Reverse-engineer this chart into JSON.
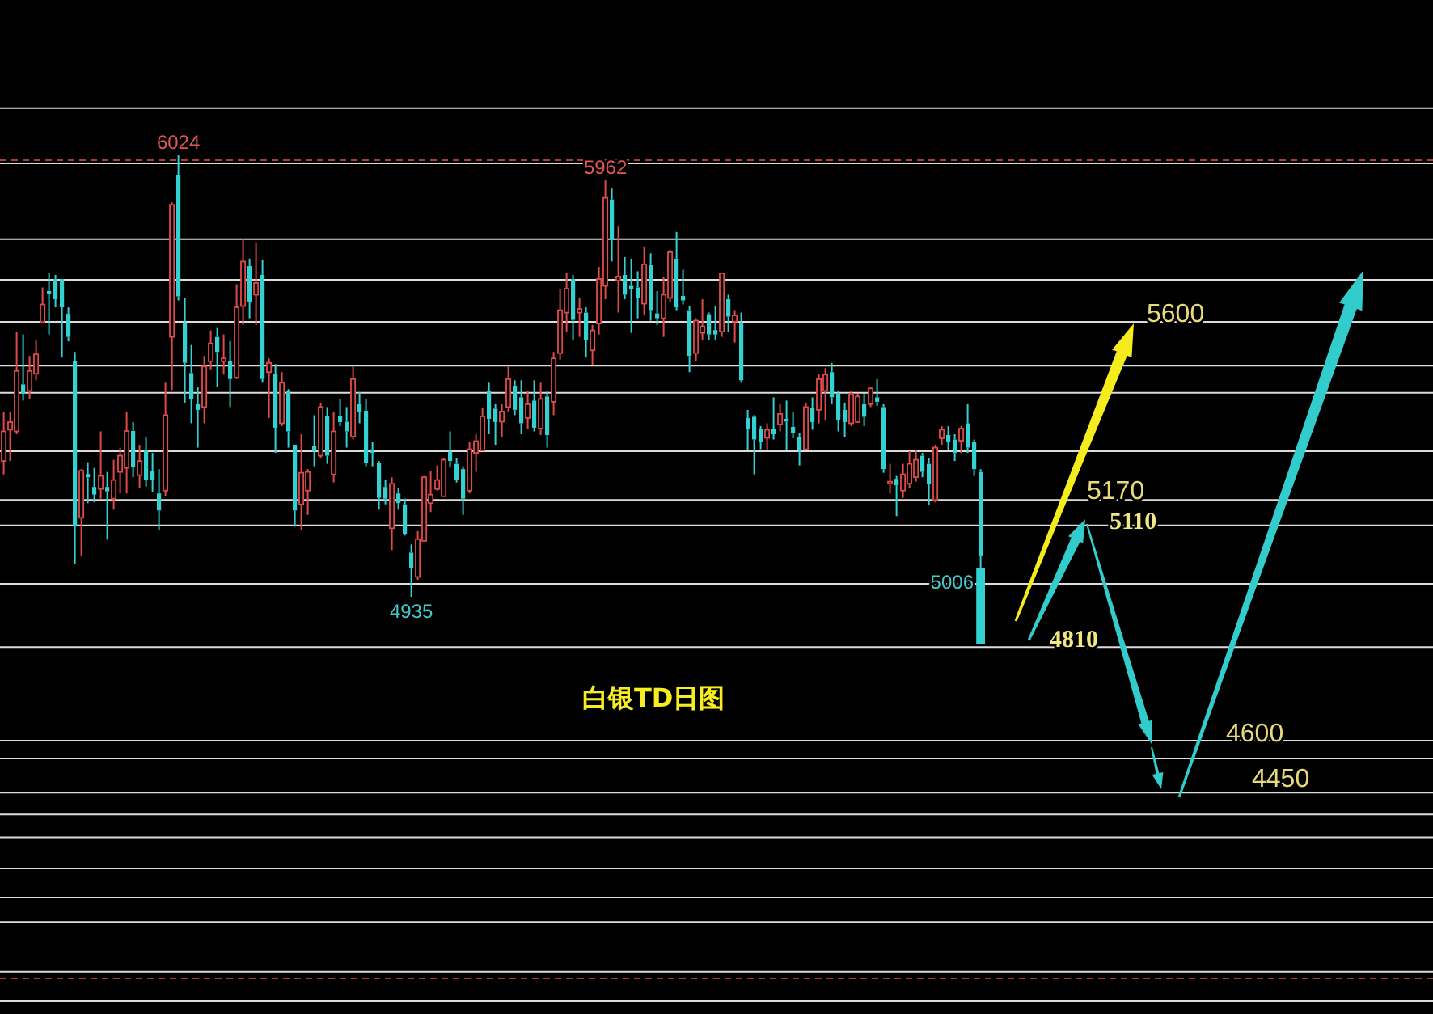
{
  "chart_data": {
    "type": "candlestick",
    "title": "白银TD日图",
    "categories": [
      null,
      null,
      null,
      null,
      null,
      null,
      null,
      null,
      null,
      null,
      null,
      null,
      null,
      null,
      null,
      null,
      null,
      null,
      null,
      null,
      null,
      null,
      null,
      null,
      null,
      null,
      null,
      null,
      null,
      null,
      null,
      null,
      null,
      null,
      null,
      null,
      null,
      null,
      null,
      null,
      null,
      null,
      null,
      null,
      null,
      null,
      null,
      null,
      null,
      null,
      null,
      null,
      null,
      null,
      null,
      null,
      null,
      null,
      null,
      null,
      null,
      null,
      null,
      null,
      null,
      null,
      null,
      null,
      null,
      null,
      null,
      null,
      null,
      null,
      null,
      null,
      null,
      null,
      null,
      null,
      null,
      null,
      null,
      null,
      null,
      null,
      null,
      null,
      null,
      null,
      null,
      null,
      null,
      null,
      null,
      null,
      null,
      null,
      null,
      null,
      null,
      null,
      null,
      null,
      null,
      null,
      null,
      null,
      null,
      null,
      null,
      null,
      null,
      null,
      null,
      null,
      null,
      null,
      null,
      null,
      null,
      null,
      null,
      null,
      null,
      null,
      null,
      null,
      null,
      null,
      null,
      null,
      null,
      null,
      null,
      null,
      null,
      null,
      null,
      null,
      null,
      null,
      null,
      null,
      null,
      null,
      null,
      null,
      null,
      null,
      null,
      null
    ],
    "ohlc": [
      [
        5270,
        5390,
        5237,
        5343
      ],
      [
        5347,
        5390,
        5270,
        5366
      ],
      [
        5343,
        5589,
        5336,
        5492
      ],
      [
        5459,
        5582,
        5419,
        5436
      ],
      [
        5443,
        5529,
        5423,
        5492
      ],
      [
        5485,
        5569,
        5469,
        5533
      ],
      [
        5613,
        5698,
        5609,
        5656
      ],
      [
        5689,
        5735,
        5582,
        5682
      ],
      [
        5719,
        5729,
        5649,
        5669
      ],
      [
        5719,
        5719,
        5525,
        5649
      ],
      [
        5633,
        5649,
        5565,
        5576
      ],
      [
        5516,
        5539,
        5015,
        5110
      ],
      [
        5130,
        5250,
        5037,
        5246
      ],
      [
        5238,
        5267,
        5166,
        5230
      ],
      [
        5206,
        5253,
        5168,
        5187
      ],
      [
        5201,
        5343,
        5177,
        5233
      ],
      [
        5206,
        5243,
        5076,
        5195
      ],
      [
        5177,
        5273,
        5150,
        5223
      ],
      [
        5243,
        5303,
        5190,
        5283
      ],
      [
        5253,
        5390,
        5190,
        5344
      ],
      [
        5344,
        5366,
        5230,
        5254
      ],
      [
        5235,
        5310,
        5203,
        5270
      ],
      [
        5296,
        5330,
        5207,
        5223
      ],
      [
        5246,
        5290,
        5193,
        5223
      ],
      [
        5190,
        5250,
        5100,
        5148
      ],
      [
        5197,
        5463,
        5183,
        5383
      ],
      [
        5576,
        5908,
        5445,
        5902
      ],
      [
        5975,
        6024,
        5666,
        5676
      ],
      [
        5612,
        5672,
        5414,
        5512
      ],
      [
        5487,
        5556,
        5363,
        5423
      ],
      [
        5410,
        5453,
        5303,
        5396
      ],
      [
        5403,
        5529,
        5363,
        5503
      ],
      [
        5516,
        5592,
        5496,
        5560
      ],
      [
        5576,
        5598,
        5453,
        5539
      ],
      [
        5516,
        5582,
        5483,
        5523
      ],
      [
        5516,
        5566,
        5403,
        5472
      ],
      [
        5476,
        5706,
        5472,
        5649
      ],
      [
        5652,
        5818,
        5605,
        5762
      ],
      [
        5751,
        5769,
        5622,
        5662
      ],
      [
        5680,
        5809,
        5605,
        5709
      ],
      [
        5729,
        5765,
        5463,
        5472
      ],
      [
        5489,
        5523,
        5376,
        5512
      ],
      [
        5485,
        5509,
        5290,
        5352
      ],
      [
        5363,
        5489,
        5356,
        5463
      ],
      [
        5443,
        5447,
        5303,
        5343
      ],
      [
        5310,
        5310,
        5108,
        5148
      ],
      [
        5163,
        5336,
        5100,
        5241
      ],
      [
        5197,
        5250,
        5137,
        5243
      ],
      [
        5307,
        5383,
        5257,
        5294
      ],
      [
        5283,
        5414,
        5277,
        5403
      ],
      [
        5380,
        5403,
        5263,
        5283
      ],
      [
        5237,
        5392,
        5217,
        5343
      ],
      [
        5380,
        5423,
        5356,
        5366
      ],
      [
        5367,
        5403,
        5303,
        5343
      ],
      [
        5330,
        5503,
        5323,
        5472
      ],
      [
        5410,
        5440,
        5363,
        5390
      ],
      [
        5394,
        5423,
        5257,
        5266
      ],
      [
        5299,
        5316,
        5257,
        5290
      ],
      [
        5266,
        5270,
        5150,
        5179
      ],
      [
        5206,
        5223,
        5163,
        5177
      ],
      [
        5104,
        5230,
        5050,
        5214
      ],
      [
        5190,
        5203,
        5150,
        5166
      ],
      [
        5163,
        5177,
        5086,
        5090
      ],
      [
        5044,
        5064,
        4935,
        5007
      ],
      [
        4984,
        5097,
        4977,
        5077
      ],
      [
        5073,
        5233,
        5073,
        5230
      ],
      [
        5166,
        5246,
        5144,
        5187
      ],
      [
        5201,
        5259,
        5197,
        5223
      ],
      [
        5183,
        5277,
        5183,
        5273
      ],
      [
        5293,
        5343,
        5254,
        5270
      ],
      [
        5263,
        5277,
        5217,
        5223
      ],
      [
        5250,
        5257,
        5137,
        5177
      ],
      [
        5197,
        5316,
        5190,
        5299
      ],
      [
        5290,
        5336,
        5243,
        5319
      ],
      [
        5296,
        5400,
        5296,
        5380
      ],
      [
        5443,
        5463,
        5336,
        5374
      ],
      [
        5399,
        5410,
        5310,
        5366
      ],
      [
        5367,
        5410,
        5330,
        5392
      ],
      [
        5403,
        5503,
        5390,
        5472
      ],
      [
        5456,
        5469,
        5383,
        5396
      ],
      [
        5427,
        5469,
        5336,
        5363
      ],
      [
        5376,
        5443,
        5350,
        5410
      ],
      [
        5419,
        5469,
        5343,
        5352
      ],
      [
        5350,
        5463,
        5334,
        5423
      ],
      [
        5429,
        5443,
        5303,
        5334
      ],
      [
        5416,
        5539,
        5383,
        5523
      ],
      [
        5536,
        5695,
        5520,
        5642
      ],
      [
        5636,
        5735,
        5589,
        5695
      ],
      [
        5719,
        5729,
        5569,
        5618
      ],
      [
        5636,
        5672,
        5576,
        5645
      ],
      [
        5636,
        5649,
        5525,
        5569
      ],
      [
        5543,
        5605,
        5507,
        5592
      ],
      [
        5609,
        5749,
        5582,
        5719
      ],
      [
        5702,
        5962,
        5669,
        5919
      ],
      [
        5915,
        5942,
        5762,
        5815
      ],
      [
        5715,
        5848,
        5636,
        5725
      ],
      [
        5729,
        5773,
        5669,
        5680
      ],
      [
        5702,
        5769,
        5586,
        5695
      ],
      [
        5698,
        5738,
        5622,
        5672
      ],
      [
        5658,
        5799,
        5629,
        5755
      ],
      [
        5753,
        5782,
        5616,
        5642
      ],
      [
        5634,
        5689,
        5605,
        5622
      ],
      [
        5622,
        5725,
        5576,
        5680
      ],
      [
        5672,
        5791,
        5662,
        5785
      ],
      [
        5769,
        5835,
        5642,
        5649
      ],
      [
        5677,
        5742,
        5656,
        5666
      ],
      [
        5642,
        5653,
        5489,
        5529
      ],
      [
        5536,
        5622,
        5516,
        5616
      ],
      [
        5586,
        5669,
        5569,
        5602
      ],
      [
        5632,
        5636,
        5569,
        5582
      ],
      [
        5593,
        5652,
        5569,
        5582
      ],
      [
        5589,
        5733,
        5576,
        5733
      ],
      [
        5669,
        5680,
        5589,
        5626
      ],
      [
        5614,
        5642,
        5562,
        5629
      ],
      [
        5609,
        5636,
        5463,
        5469
      ],
      [
        5376,
        5396,
        5296,
        5350
      ],
      [
        5379,
        5383,
        5237,
        5323
      ],
      [
        5350,
        5356,
        5299,
        5316
      ],
      [
        5327,
        5363,
        5296,
        5347
      ],
      [
        5350,
        5427,
        5323,
        5336
      ],
      [
        5360,
        5410,
        5343,
        5386
      ],
      [
        5374,
        5419,
        5296,
        5367
      ],
      [
        5354,
        5390,
        5326,
        5339
      ],
      [
        5330,
        5339,
        5259,
        5296
      ],
      [
        5299,
        5414,
        5299,
        5403
      ],
      [
        5400,
        5427,
        5347,
        5366
      ],
      [
        5396,
        5485,
        5363,
        5472
      ],
      [
        5443,
        5499,
        5370,
        5483
      ],
      [
        5489,
        5512,
        5410,
        5427
      ],
      [
        5436,
        5443,
        5343,
        5370
      ],
      [
        5396,
        5414,
        5330,
        5366
      ],
      [
        5363,
        5443,
        5356,
        5436
      ],
      [
        5366,
        5436,
        5366,
        5429
      ],
      [
        5410,
        5436,
        5356,
        5379
      ],
      [
        5410,
        5453,
        5403,
        5449
      ],
      [
        5427,
        5472,
        5406,
        5416
      ],
      [
        5403,
        5410,
        5241,
        5250
      ],
      [
        5214,
        5263,
        5190,
        5219
      ],
      [
        5226,
        5233,
        5134,
        5210
      ],
      [
        5197,
        5263,
        5179,
        5237
      ],
      [
        5214,
        5294,
        5203,
        5263
      ],
      [
        5230,
        5296,
        5219,
        5273
      ],
      [
        5283,
        5290,
        5230,
        5243
      ],
      [
        5263,
        5277,
        5161,
        5214
      ],
      [
        5174,
        5310,
        5168,
        5303
      ],
      [
        5326,
        5356,
        5310,
        5347
      ],
      [
        5334,
        5356,
        5296,
        5316
      ],
      [
        5323,
        5336,
        5270,
        5290
      ],
      [
        5320,
        5356,
        5290,
        5350
      ],
      [
        5363,
        5410,
        5290,
        5303
      ],
      [
        5316,
        5323,
        5233,
        5250
      ],
      [
        5243,
        5250,
        5006,
        5037
      ]
    ],
    "ylim": [
      3906,
      6407
    ],
    "tick_labels": false,
    "ref_lines": [
      {
        "axis": "y",
        "value": 6140,
        "color": "#dcdcdc"
      },
      {
        "axis": "y",
        "value": 6012,
        "color": "#b03a3a",
        "line_style": "dashed"
      },
      {
        "axis": "y",
        "value": 6004,
        "color": "#dcdcdc"
      },
      {
        "axis": "y",
        "value": 5817,
        "color": "#dcdcdc"
      },
      {
        "axis": "y",
        "value": 5717,
        "color": "#dcdcdc"
      },
      {
        "axis": "y",
        "value": 5613,
        "color": "#dcdcdc"
      },
      {
        "axis": "y",
        "value": 5505,
        "color": "#dcdcdc"
      },
      {
        "axis": "y",
        "value": 5438,
        "color": "#dcdcdc"
      },
      {
        "axis": "y",
        "value": 5294,
        "color": "#dcdcdc"
      },
      {
        "axis": "y",
        "value": 5174,
        "color": "#dcdcdc"
      },
      {
        "axis": "y",
        "value": 5111,
        "color": "#dcdcdc"
      },
      {
        "axis": "y",
        "value": 4967,
        "color": "#dcdcdc"
      },
      {
        "axis": "y",
        "value": 4811,
        "color": "#dcdcdc"
      },
      {
        "axis": "y",
        "value": 4580,
        "color": "#dcdcdc"
      },
      {
        "axis": "y",
        "value": 4536,
        "color": "#dcdcdc"
      },
      {
        "axis": "y",
        "value": 4452,
        "color": "#dcdcdc"
      },
      {
        "axis": "y",
        "value": 4398,
        "color": "#dcdcdc"
      },
      {
        "axis": "y",
        "value": 4342,
        "color": "#dcdcdc"
      },
      {
        "axis": "y",
        "value": 4265,
        "color": "#dcdcdc"
      },
      {
        "axis": "y",
        "value": 4193,
        "color": "#dcdcdc"
      },
      {
        "axis": "y",
        "value": 4133,
        "color": "#dcdcdc"
      },
      {
        "axis": "y",
        "value": 4010,
        "color": "#dcdcdc"
      },
      {
        "axis": "y",
        "value": 3994,
        "color": "#b03a3a",
        "line_style": "dashed"
      },
      {
        "axis": "y",
        "value": 3938,
        "color": "#dcdcdc"
      }
    ],
    "annotations": [
      {
        "text": "6024",
        "y": 6024
      },
      {
        "text": "5962",
        "y": 5962
      },
      {
        "text": "4935",
        "y": 4935
      },
      "5006",
      {
        "text": "5600",
        "y": 5600
      },
      {
        "text": "5170",
        "y": 5170
      },
      {
        "text": "5110",
        "y": 5110
      },
      {
        "text": "4810",
        "y": 4810
      },
      "4600",
      {
        "text": "4450",
        "y": 4450
      }
    ]
  }
}
